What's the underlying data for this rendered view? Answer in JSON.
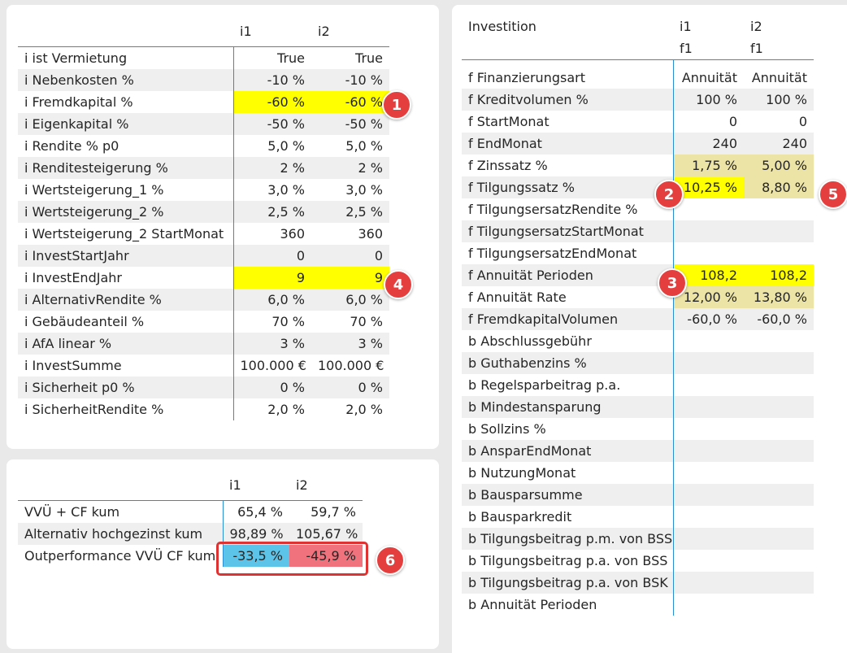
{
  "left_table": {
    "columns": [
      "i1",
      "i2"
    ],
    "rows": [
      {
        "label": "i ist Vermietung",
        "v1": "True",
        "v2": "True"
      },
      {
        "label": "i Nebenkosten %",
        "v1": "-10 %",
        "v2": "-10 %"
      },
      {
        "label": "i Fremdkapital %",
        "v1": "-60 %",
        "v2": "-60 %"
      },
      {
        "label": "i Eigenkapital %",
        "v1": "-50 %",
        "v2": "-50 %"
      },
      {
        "label": "i Rendite % p0",
        "v1": "5,0 %",
        "v2": "5,0 %"
      },
      {
        "label": "i Renditesteigerung %",
        "v1": "2 %",
        "v2": "2 %"
      },
      {
        "label": "i Wertsteigerung_1 %",
        "v1": "3,0 %",
        "v2": "3,0 %"
      },
      {
        "label": "i Wertsteigerung_2 %",
        "v1": "2,5 %",
        "v2": "2,5 %"
      },
      {
        "label": "i Wertsteigerung_2 StartMonat",
        "v1": "360",
        "v2": "360"
      },
      {
        "label": "i InvestStartJahr",
        "v1": "0",
        "v2": "0"
      },
      {
        "label": "i InvestEndJahr",
        "v1": "9",
        "v2": "9"
      },
      {
        "label": "i AlternativRendite %",
        "v1": "6,0 %",
        "v2": "6,0 %"
      },
      {
        "label": "i Gebäudeanteil %",
        "v1": "70 %",
        "v2": "70 %"
      },
      {
        "label": "i AfA linear %",
        "v1": "3 %",
        "v2": "3 %"
      },
      {
        "label": "i InvestSumme",
        "v1": "100.000 €",
        "v2": "100.000 €"
      },
      {
        "label": "i Sicherheit p0 %",
        "v1": "0 %",
        "v2": "0 %"
      },
      {
        "label": "i SicherheitRendite %",
        "v1": "2,0 %",
        "v2": "2,0 %"
      }
    ]
  },
  "bottom_table": {
    "columns": [
      "i1",
      "i2"
    ],
    "rows": [
      {
        "label": "VVÜ + CF kum",
        "v1": "65,4 %",
        "v2": "59,7 %"
      },
      {
        "label": "Alternativ hochgezinst kum",
        "v1": "98,89 %",
        "v2": "105,67 %"
      },
      {
        "label": "Outperformance VVÜ CF kum",
        "v1": "-33,5 %",
        "v2": "-45,9 %"
      }
    ]
  },
  "right_table": {
    "header": {
      "label": "Investition",
      "c1": "i1",
      "c2": "i2",
      "c1b": "f1",
      "c2b": "f1"
    },
    "rows": [
      {
        "label": "f Finanzierungsart",
        "v1": "Annuität",
        "v2": "Annuität"
      },
      {
        "label": "f Kreditvolumen %",
        "v1": "100 %",
        "v2": "100 %"
      },
      {
        "label": "f StartMonat",
        "v1": "0",
        "v2": "0"
      },
      {
        "label": "f EndMonat",
        "v1": "240",
        "v2": "240"
      },
      {
        "label": "f Zinssatz %",
        "v1": "1,75 %",
        "v2": "5,00 %"
      },
      {
        "label": "f Tilgungssatz %",
        "v1": "10,25 %",
        "v2": "8,80 %"
      },
      {
        "label": "f TilgungsersatzRendite %",
        "v1": "",
        "v2": ""
      },
      {
        "label": "f TilgungsersatzStartMonat",
        "v1": "",
        "v2": ""
      },
      {
        "label": "f TilgungsersatzEndMonat",
        "v1": "",
        "v2": ""
      },
      {
        "label": "f Annuität Perioden",
        "v1": "108,2",
        "v2": "108,2"
      },
      {
        "label": "f Annuität Rate",
        "v1": "12,00 %",
        "v2": "13,80 %"
      },
      {
        "label": "f FremdkapitalVolumen",
        "v1": "-60,0 %",
        "v2": "-60,0 %"
      },
      {
        "label": "b Abschlussgebühr",
        "v1": "",
        "v2": ""
      },
      {
        "label": "b Guthabenzins %",
        "v1": "",
        "v2": ""
      },
      {
        "label": "b Regelsparbeitrag p.a.",
        "v1": "",
        "v2": ""
      },
      {
        "label": "b Mindestansparung",
        "v1": "",
        "v2": ""
      },
      {
        "label": "b Sollzins %",
        "v1": "",
        "v2": ""
      },
      {
        "label": "b AnsparEndMonat",
        "v1": "",
        "v2": ""
      },
      {
        "label": "b NutzungMonat",
        "v1": "",
        "v2": ""
      },
      {
        "label": "b Bausparsumme",
        "v1": "",
        "v2": ""
      },
      {
        "label": "b Bausparkredit",
        "v1": "",
        "v2": ""
      },
      {
        "label": "b Tilgungsbeitrag p.m. von BSS",
        "v1": "",
        "v2": ""
      },
      {
        "label": "b Tilgungsbeitrag p.a. von BSS",
        "v1": "",
        "v2": ""
      },
      {
        "label": "b Tilgungsbeitrag p.a. von BSK",
        "v1": "",
        "v2": ""
      },
      {
        "label": "b Annuität Perioden",
        "v1": "",
        "v2": ""
      }
    ]
  },
  "markers": [
    "1",
    "2",
    "3",
    "4",
    "5",
    "6"
  ],
  "colors": {
    "accent_line": "#2a8fd0",
    "highlight_yellow": "#ffff00",
    "highlight_beige": "#ece3a6",
    "positive_blue": "#5bc4e8",
    "negative_red": "#f0727d",
    "marker_red": "#e53e3e"
  }
}
